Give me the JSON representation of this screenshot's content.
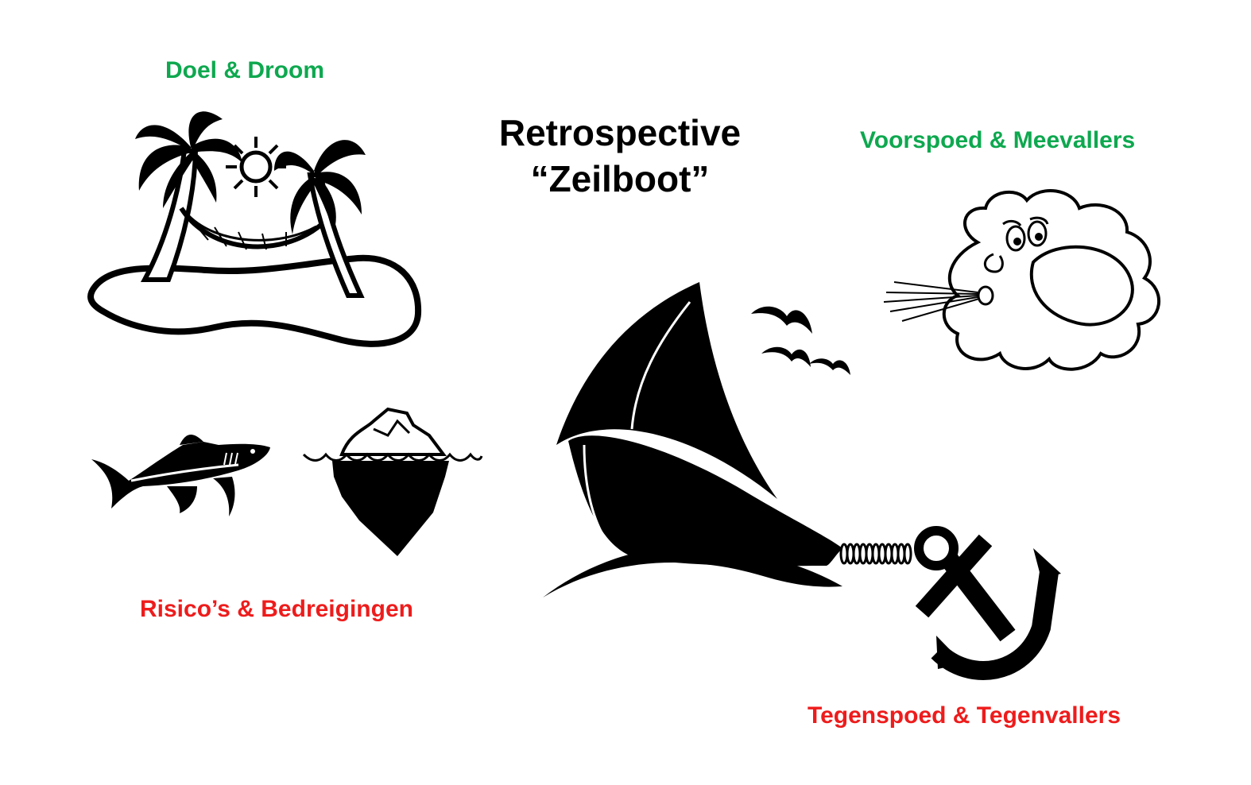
{
  "title": {
    "line1": "Retrospective",
    "line2": "“Zeilboot”"
  },
  "labels": {
    "goal": "Doel & Droom",
    "prosperity": "Voorspoed & Meevallers",
    "risks": "Risico’s & Bedreigingen",
    "adversity": "Tegenspoed & Tegenvallers"
  },
  "colors": {
    "positive": "#0ea84f",
    "negative": "#ee1c1c",
    "ink": "#000000"
  },
  "icons": {
    "goal": "island-palm-hammock-icon",
    "prosperity": "wind-cloud-icon",
    "risk_shark": "shark-icon",
    "risk_iceberg": "iceberg-icon",
    "boat": "sailboat-icon",
    "birds": "seagulls-icon",
    "anchor": "anchor-icon"
  }
}
